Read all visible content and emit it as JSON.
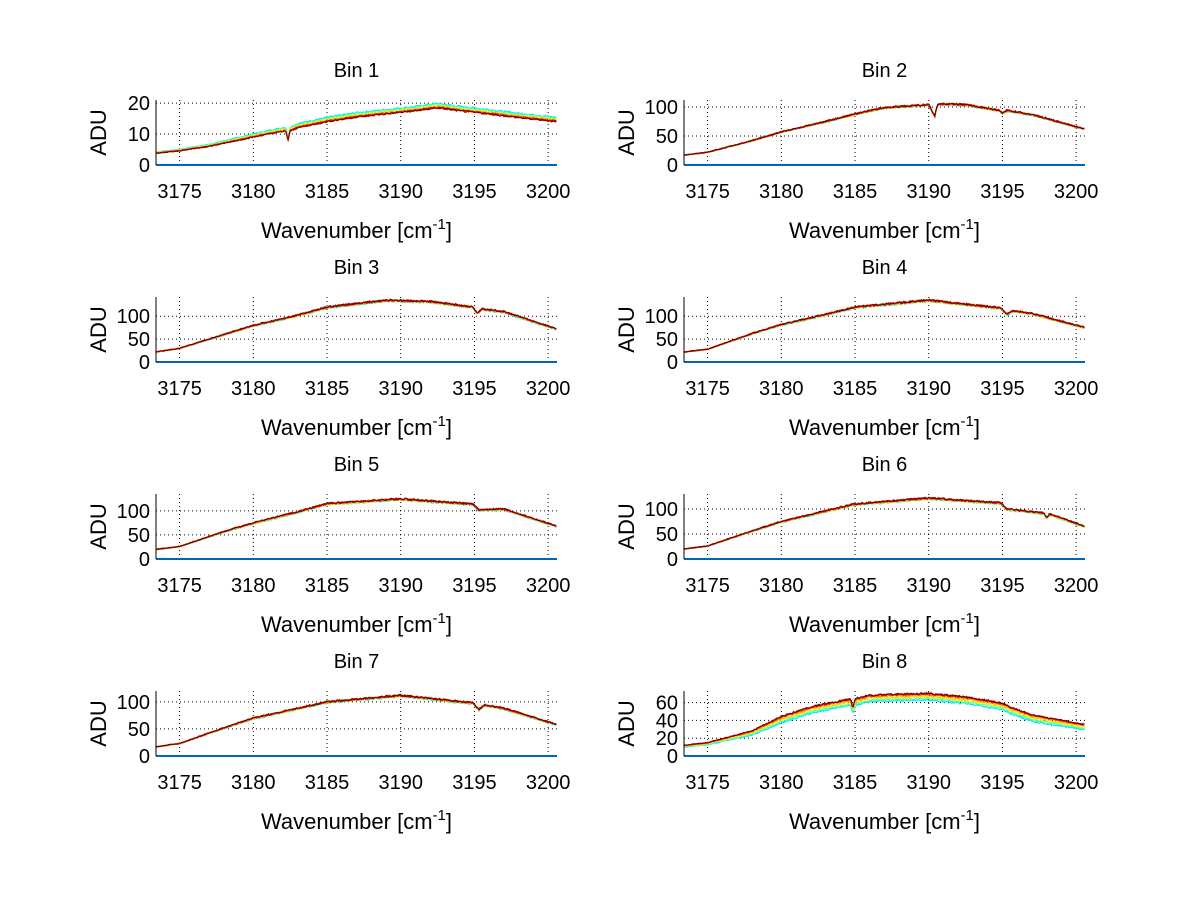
{
  "chart_data": {
    "type": "line",
    "layout": "4x2 subplots",
    "xlabel": "Wavenumber [cm",
    "xlabel_sup": "-1",
    "xlabel_close": "]",
    "ylabel": "ADU",
    "xlim": [
      3173.4,
      3200.6
    ],
    "xticks": [
      3175,
      3180,
      3185,
      3190,
      3195,
      3200
    ],
    "grid": true,
    "zero_line_color": "#0066b3",
    "series_colors": [
      "#00e5ff",
      "#40ffb0",
      "#c0ff40",
      "#ffd000",
      "#ff7000",
      "#e00000",
      "#800000"
    ],
    "panels": [
      {
        "title": "Bin 1",
        "ylim": [
          0,
          21
        ],
        "yticks": [
          0,
          10,
          20
        ],
        "x": [
          3173.4,
          3175,
          3177,
          3179,
          3181,
          3182.2,
          3182.35,
          3182.5,
          3183,
          3185,
          3187,
          3189,
          3191,
          3192.5,
          3194,
          3196,
          3198,
          3200.6
        ],
        "y": [
          3.8,
          4.6,
          6,
          8,
          10,
          11,
          7.8,
          11,
          12,
          14,
          15.5,
          16.5,
          17.5,
          18.5,
          17.5,
          16.5,
          15.3,
          14
        ],
        "series_offsets": [
          1.4,
          1.1,
          0.8,
          0.5,
          0.3,
          0.1,
          0
        ]
      },
      {
        "title": "Bin 2",
        "ylim": [
          0,
          112
        ],
        "yticks": [
          0,
          50,
          100
        ],
        "x": [
          3173.4,
          3175,
          3178,
          3180,
          3183,
          3185,
          3187,
          3190,
          3190.4,
          3190.6,
          3191,
          3192.5,
          3194.8,
          3195,
          3195.3,
          3197,
          3200.6
        ],
        "y": [
          17,
          22,
          42,
          57,
          75,
          88,
          99,
          104,
          84,
          104,
          105,
          104,
          94,
          89,
          94,
          87,
          62
        ],
        "series_offsets": [
          -1,
          -0.8,
          -0.6,
          -0.4,
          -0.2,
          0,
          0.2
        ]
      },
      {
        "title": "Bin 3",
        "ylim": [
          0,
          142
        ],
        "yticks": [
          0,
          50,
          100
        ],
        "x": [
          3173.4,
          3175,
          3178,
          3180,
          3183,
          3185,
          3189,
          3192,
          3194.9,
          3195.2,
          3195.5,
          3197,
          3200.6
        ],
        "y": [
          22,
          30,
          60,
          80,
          102,
          120,
          135,
          132,
          120,
          106,
          116,
          110,
          72
        ],
        "series_offsets": [
          -2,
          -1.6,
          -1.2,
          -0.8,
          -0.4,
          0,
          0.4
        ]
      },
      {
        "title": "Bin 4",
        "ylim": [
          0,
          142
        ],
        "yticks": [
          0,
          50,
          100
        ],
        "x": [
          3173.4,
          3175,
          3178,
          3180,
          3183,
          3185,
          3190,
          3194.9,
          3195.3,
          3195.7,
          3197,
          3200.6
        ],
        "y": [
          22,
          28,
          62,
          82,
          104,
          120,
          135,
          118,
          104,
          112,
          106,
          75
        ],
        "series_offsets": [
          -2,
          -1.6,
          -1.2,
          -0.8,
          -0.4,
          0,
          0.4
        ]
      },
      {
        "title": "Bin 5",
        "ylim": [
          0,
          135
        ],
        "yticks": [
          0,
          50,
          100
        ],
        "x": [
          3173.4,
          3175,
          3178,
          3180,
          3183,
          3185,
          3190,
          3194.9,
          3195.3,
          3197,
          3200.6
        ],
        "y": [
          20,
          26,
          57,
          75,
          98,
          115,
          125,
          114,
          102,
          104,
          68
        ],
        "series_offsets": [
          -2,
          -1.6,
          -1.2,
          -0.8,
          -0.4,
          0,
          0.4
        ]
      },
      {
        "title": "Bin 6",
        "ylim": [
          0,
          130
        ],
        "yticks": [
          0,
          50,
          100
        ],
        "x": [
          3173.4,
          3175,
          3178,
          3180,
          3183,
          3185,
          3190,
          3194.9,
          3195.3,
          3197.8,
          3198,
          3198.2,
          3200.6
        ],
        "y": [
          20,
          26,
          56,
          75,
          96,
          110,
          122,
          112,
          100,
          92,
          82,
          90,
          65
        ],
        "series_offsets": [
          -2,
          -1.6,
          -1.2,
          -0.8,
          -0.4,
          0,
          0.4
        ]
      },
      {
        "title": "Bin 7",
        "ylim": [
          0,
          120
        ],
        "yticks": [
          0,
          50,
          100
        ],
        "x": [
          3173.4,
          3175,
          3178,
          3180,
          3183,
          3185,
          3190,
          3194.9,
          3195.3,
          3195.7,
          3197,
          3200.6
        ],
        "y": [
          17,
          23,
          52,
          70,
          88,
          100,
          112,
          98,
          86,
          94,
          88,
          58
        ],
        "series_offsets": [
          -2,
          -1.6,
          -1.2,
          -0.8,
          -0.4,
          0,
          0.4
        ]
      },
      {
        "title": "Bin 8",
        "ylim": [
          0,
          73
        ],
        "yticks": [
          0,
          20,
          40,
          60
        ],
        "ytick_labels_shown": [
          0,
          20,
          40,
          60
        ],
        "x": [
          3173.4,
          3175,
          3178,
          3180,
          3182,
          3184.7,
          3184.85,
          3185,
          3186,
          3190,
          3193,
          3195,
          3195.5,
          3197,
          3200.6
        ],
        "y": [
          12,
          15,
          28,
          44,
          55,
          64,
          54,
          64,
          68,
          70,
          65,
          59,
          55,
          46,
          35
        ],
        "series_offsets": [
          -7,
          -5.5,
          -4,
          -2.5,
          -1,
          0,
          0.3
        ]
      }
    ]
  }
}
